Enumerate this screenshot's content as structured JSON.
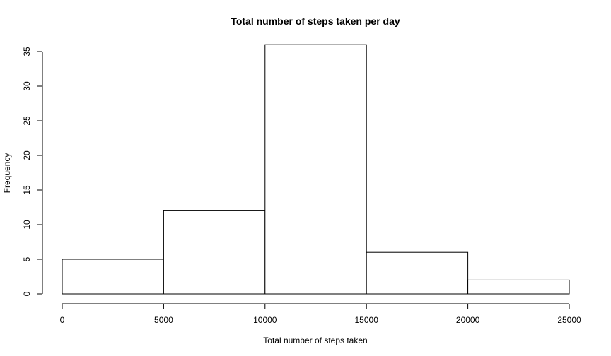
{
  "chart_data": {
    "type": "bar",
    "title": "Total number of steps taken per day",
    "xlabel": "Total number of steps taken",
    "ylabel": "Frequency",
    "bins": [
      {
        "from": 0,
        "to": 5000,
        "count": 5
      },
      {
        "from": 5000,
        "to": 10000,
        "count": 12
      },
      {
        "from": 10000,
        "to": 15000,
        "count": 36
      },
      {
        "from": 15000,
        "to": 20000,
        "count": 6
      },
      {
        "from": 20000,
        "to": 25000,
        "count": 2
      }
    ],
    "xlim": [
      0,
      25000
    ],
    "ylim": [
      0,
      35
    ],
    "x_ticks": [
      0,
      5000,
      10000,
      15000,
      20000,
      25000
    ],
    "y_ticks": [
      0,
      5,
      10,
      15,
      20,
      25,
      30,
      35
    ],
    "grid": false,
    "colors": {
      "bar_fill": "#ffffff",
      "bar_stroke": "#000000",
      "axis": "#000000",
      "background": "#ffffff"
    }
  }
}
